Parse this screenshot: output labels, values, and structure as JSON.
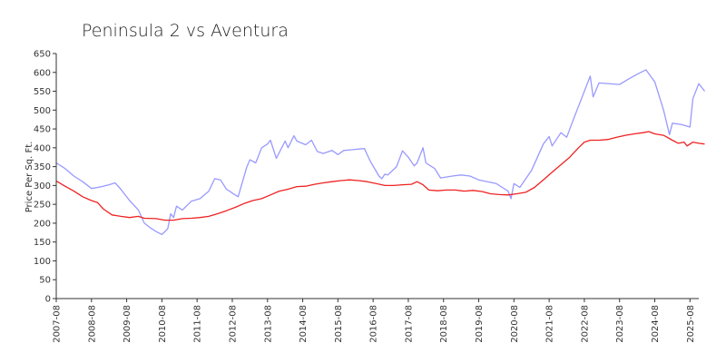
{
  "chart_data": {
    "type": "line",
    "title": "Peninsula 2 vs Aventura",
    "ylabel": "Price Per Sq. Ft.",
    "xlabel": "",
    "ylim": [
      0,
      650
    ],
    "yticks": [
      0,
      50,
      100,
      150,
      200,
      250,
      300,
      350,
      400,
      450,
      500,
      550,
      600,
      650
    ],
    "xlim": [
      "2007-08",
      "2025-11"
    ],
    "xticks": [
      "2007-08",
      "2008-08",
      "2009-08",
      "2010-08",
      "2011-08",
      "2012-08",
      "2013-08",
      "2014-08",
      "2015-08",
      "2016-08",
      "2017-08",
      "2018-08",
      "2019-08",
      "2020-08",
      "2021-08",
      "2022-08",
      "2023-08",
      "2024-08",
      "2025-08"
    ],
    "grid": false,
    "legend": "none",
    "series": [
      {
        "color": "#9999ff",
        "points": [
          [
            "2007-08",
            360
          ],
          [
            "2007-11",
            345
          ],
          [
            "2008-02",
            325
          ],
          [
            "2008-05",
            310
          ],
          [
            "2008-08",
            292
          ],
          [
            "2008-11",
            296
          ],
          [
            "2009-02",
            302
          ],
          [
            "2009-04",
            307
          ],
          [
            "2009-06",
            290
          ],
          [
            "2009-09",
            260
          ],
          [
            "2009-12",
            235
          ],
          [
            "2010-02",
            200
          ],
          [
            "2010-04",
            188
          ],
          [
            "2010-06",
            178
          ],
          [
            "2010-08",
            170
          ],
          [
            "2010-10",
            185
          ],
          [
            "2010-11",
            225
          ],
          [
            "2010-12",
            215
          ],
          [
            "2011-01",
            245
          ],
          [
            "2011-03",
            235
          ],
          [
            "2011-06",
            258
          ],
          [
            "2011-09",
            265
          ],
          [
            "2011-12",
            285
          ],
          [
            "2012-02",
            318
          ],
          [
            "2012-04",
            315
          ],
          [
            "2012-06",
            290
          ],
          [
            "2012-09",
            275
          ],
          [
            "2012-10",
            270
          ],
          [
            "2013-01",
            350
          ],
          [
            "2013-02",
            368
          ],
          [
            "2013-04",
            360
          ],
          [
            "2013-06",
            400
          ],
          [
            "2013-08",
            410
          ],
          [
            "2013-09",
            420
          ],
          [
            "2013-11",
            372
          ],
          [
            "2014-02",
            418
          ],
          [
            "2014-03",
            400
          ],
          [
            "2014-05",
            432
          ],
          [
            "2014-06",
            418
          ],
          [
            "2014-09",
            408
          ],
          [
            "2014-11",
            420
          ],
          [
            "2015-01",
            390
          ],
          [
            "2015-03",
            385
          ],
          [
            "2015-06",
            393
          ],
          [
            "2015-08",
            382
          ],
          [
            "2015-10",
            393
          ],
          [
            "2016-01",
            395
          ],
          [
            "2016-05",
            398
          ],
          [
            "2016-07",
            365
          ],
          [
            "2016-10",
            325
          ],
          [
            "2016-11",
            318
          ],
          [
            "2016-12",
            330
          ],
          [
            "2017-01",
            328
          ],
          [
            "2017-04",
            350
          ],
          [
            "2017-06",
            392
          ],
          [
            "2017-08",
            375
          ],
          [
            "2017-10",
            352
          ],
          [
            "2017-11",
            360
          ],
          [
            "2018-01",
            400
          ],
          [
            "2018-02",
            360
          ],
          [
            "2018-05",
            345
          ],
          [
            "2018-07",
            320
          ],
          [
            "2018-11",
            325
          ],
          [
            "2019-02",
            328
          ],
          [
            "2019-05",
            325
          ],
          [
            "2019-08",
            315
          ],
          [
            "2019-11",
            310
          ],
          [
            "2020-02",
            305
          ],
          [
            "2020-04",
            295
          ],
          [
            "2020-06",
            285
          ],
          [
            "2020-07",
            265
          ],
          [
            "2020-08",
            305
          ],
          [
            "2020-10",
            295
          ],
          [
            "2021-02",
            340
          ],
          [
            "2021-06",
            410
          ],
          [
            "2021-08",
            430
          ],
          [
            "2021-09",
            405
          ],
          [
            "2021-12",
            440
          ],
          [
            "2022-02",
            428
          ],
          [
            "2022-04",
            470
          ],
          [
            "2022-07",
            530
          ],
          [
            "2022-10",
            590
          ],
          [
            "2022-11",
            535
          ],
          [
            "2023-01",
            572
          ],
          [
            "2023-08",
            568
          ],
          [
            "2023-11",
            582
          ],
          [
            "2024-02",
            595
          ],
          [
            "2024-05",
            607
          ],
          [
            "2024-08",
            575
          ],
          [
            "2024-11",
            500
          ],
          [
            "2025-01",
            435
          ],
          [
            "2025-02",
            465
          ],
          [
            "2025-05",
            462
          ],
          [
            "2025-08",
            455
          ],
          [
            "2025-09",
            530
          ],
          [
            "2025-11",
            570
          ],
          [
            "2026-01",
            550
          ]
        ]
      },
      {
        "color": "#ee2222",
        "points": [
          [
            "2007-08",
            312
          ],
          [
            "2007-11",
            298
          ],
          [
            "2008-02",
            285
          ],
          [
            "2008-05",
            270
          ],
          [
            "2008-08",
            260
          ],
          [
            "2008-10",
            255
          ],
          [
            "2008-12",
            238
          ],
          [
            "2009-03",
            222
          ],
          [
            "2009-06",
            218
          ],
          [
            "2009-09",
            215
          ],
          [
            "2009-12",
            218
          ],
          [
            "2010-02",
            213
          ],
          [
            "2010-06",
            212
          ],
          [
            "2010-09",
            208
          ],
          [
            "2010-12",
            208
          ],
          [
            "2011-03",
            212
          ],
          [
            "2011-06",
            213
          ],
          [
            "2011-09",
            215
          ],
          [
            "2011-12",
            218
          ],
          [
            "2012-03",
            225
          ],
          [
            "2012-06",
            233
          ],
          [
            "2012-09",
            242
          ],
          [
            "2012-12",
            252
          ],
          [
            "2013-03",
            260
          ],
          [
            "2013-06",
            265
          ],
          [
            "2013-09",
            275
          ],
          [
            "2013-12",
            285
          ],
          [
            "2014-03",
            290
          ],
          [
            "2014-06",
            297
          ],
          [
            "2014-09",
            298
          ],
          [
            "2014-12",
            303
          ],
          [
            "2015-03",
            307
          ],
          [
            "2015-06",
            310
          ],
          [
            "2015-09",
            313
          ],
          [
            "2015-12",
            315
          ],
          [
            "2016-03",
            313
          ],
          [
            "2016-06",
            310
          ],
          [
            "2016-09",
            305
          ],
          [
            "2016-12",
            300
          ],
          [
            "2017-03",
            300
          ],
          [
            "2017-06",
            302
          ],
          [
            "2017-09",
            303
          ],
          [
            "2017-11",
            310
          ],
          [
            "2018-01",
            302
          ],
          [
            "2018-03",
            288
          ],
          [
            "2018-06",
            286
          ],
          [
            "2018-09",
            288
          ],
          [
            "2018-12",
            288
          ],
          [
            "2019-03",
            285
          ],
          [
            "2019-06",
            287
          ],
          [
            "2019-09",
            284
          ],
          [
            "2019-12",
            278
          ],
          [
            "2020-03",
            276
          ],
          [
            "2020-06",
            275
          ],
          [
            "2020-09",
            278
          ],
          [
            "2020-12",
            282
          ],
          [
            "2021-03",
            295
          ],
          [
            "2021-06",
            315
          ],
          [
            "2021-09",
            335
          ],
          [
            "2021-12",
            355
          ],
          [
            "2022-03",
            375
          ],
          [
            "2022-06",
            400
          ],
          [
            "2022-08",
            415
          ],
          [
            "2022-10",
            420
          ],
          [
            "2023-01",
            420
          ],
          [
            "2023-04",
            422
          ],
          [
            "2023-07",
            428
          ],
          [
            "2023-10",
            433
          ],
          [
            "2024-01",
            437
          ],
          [
            "2024-04",
            440
          ],
          [
            "2024-06",
            443
          ],
          [
            "2024-08",
            437
          ],
          [
            "2024-11",
            433
          ],
          [
            "2025-02",
            420
          ],
          [
            "2025-04",
            412
          ],
          [
            "2025-06",
            415
          ],
          [
            "2025-07",
            405
          ],
          [
            "2025-09",
            415
          ],
          [
            "2025-11",
            412
          ],
          [
            "2026-01",
            410
          ]
        ]
      }
    ]
  }
}
